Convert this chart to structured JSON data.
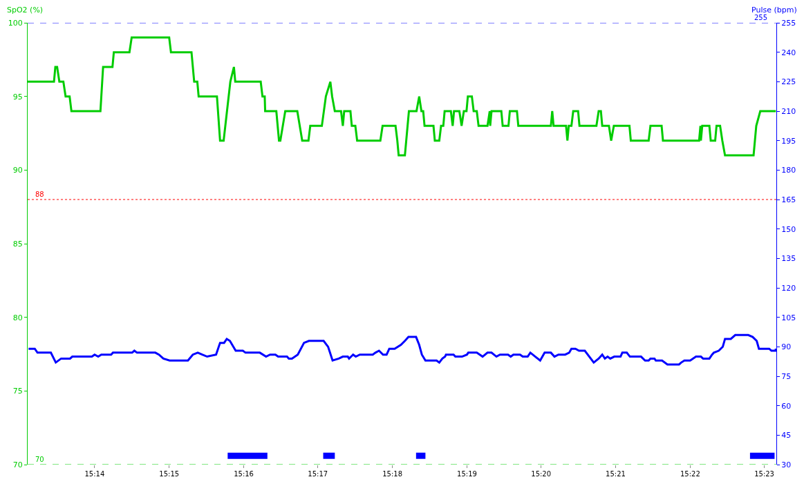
{
  "chart_data": {
    "type": "line",
    "ylabel": "SpO2 (%)",
    "y2label": "Pulse (bpm)",
    "xlim": [
      15.2183,
      15.386
    ],
    "xticks": [
      {
        "value": 15.2333,
        "label": "15:14"
      },
      {
        "value": 15.25,
        "label": "15:15"
      },
      {
        "value": 15.2667,
        "label": "15:16"
      },
      {
        "value": 15.2833,
        "label": "15:17"
      },
      {
        "value": 15.3,
        "label": "15:18"
      },
      {
        "value": 15.3167,
        "label": "15:19"
      },
      {
        "value": 15.3333,
        "label": "15:20"
      },
      {
        "value": 15.35,
        "label": "15:21"
      },
      {
        "value": 15.3667,
        "label": "15:22"
      },
      {
        "value": 15.3833,
        "label": "15:23"
      }
    ],
    "ylim": [
      70,
      100
    ],
    "yticks": [
      70,
      75,
      80,
      85,
      90,
      95,
      100
    ],
    "y2lim": [
      30,
      255
    ],
    "y2ticks": [
      30,
      45,
      60,
      75,
      90,
      105,
      120,
      135,
      150,
      165,
      180,
      195,
      210,
      225,
      240,
      255
    ],
    "marker": "none",
    "line_style": "solid",
    "ref_lines": [
      {
        "axis": "y",
        "value": 88,
        "label": "88",
        "color": "#ff0000",
        "line_style": "dotted"
      },
      {
        "axis": "y",
        "value": 70,
        "label": "70",
        "color": "#00cc00",
        "line_style": "dashed"
      },
      {
        "axis": "y2",
        "value": 255,
        "label": "255",
        "color": "#0000ff",
        "line_style": "dashed"
      }
    ],
    "series": [
      {
        "color": "#00cc00",
        "axis": "y",
        "x": [
          15.2183,
          15.2242,
          15.2245,
          15.2249,
          15.2254,
          15.2263,
          15.2268,
          15.2277,
          15.2281,
          15.2346,
          15.2352,
          15.2373,
          15.2376,
          15.2411,
          15.2416,
          15.25,
          15.2504,
          15.255,
          15.2556,
          15.2563,
          15.2566,
          15.2607,
          15.2614,
          15.2622,
          15.2637,
          15.2645,
          15.2648,
          15.2705,
          15.2709,
          15.2714,
          15.2715,
          15.274,
          15.2746,
          15.2749,
          15.276,
          15.2787,
          15.2798,
          15.2812,
          15.2816,
          15.2842,
          15.2851,
          15.2861,
          15.2865,
          15.2871,
          15.2885,
          15.2889,
          15.2892,
          15.2906,
          15.2909,
          15.2917,
          15.2921,
          15.2973,
          15.2978,
          15.3007,
          15.3011,
          15.3014,
          15.3028,
          15.3037,
          15.3054,
          15.306,
          15.3065,
          15.3069,
          15.3072,
          15.3092,
          15.3095,
          15.3105,
          15.3109,
          15.3114,
          15.3117,
          15.3131,
          15.3135,
          15.3138,
          15.315,
          15.3155,
          15.316,
          15.3166,
          15.3169,
          15.3178,
          15.3182,
          15.3189,
          15.3193,
          15.3213,
          15.3218,
          15.3219,
          15.3222,
          15.3244,
          15.3247,
          15.326,
          15.3263,
          15.3279,
          15.3282,
          15.3355,
          15.3358,
          15.3361,
          15.3389,
          15.3392,
          15.3395,
          15.3401,
          15.3405,
          15.3416,
          15.3419,
          15.3457,
          15.3462,
          15.3467,
          15.347,
          15.3485,
          15.349,
          15.3496,
          15.3531,
          15.3534,
          15.3574,
          15.3578,
          15.3603,
          15.3606,
          15.3687,
          15.369,
          15.3691,
          15.3694,
          15.371,
          15.3713,
          15.3723,
          15.3726,
          15.3734,
          15.3739,
          15.3745,
          15.3809,
          15.3812,
          15.3815,
          15.3824,
          15.3859
        ],
        "values": [
          96,
          96,
          97,
          97,
          96,
          96,
          95,
          95,
          94,
          94,
          97,
          97,
          98,
          98,
          99,
          99,
          98,
          98,
          96,
          96,
          95,
          95,
          92,
          92,
          96,
          97,
          96,
          96,
          95,
          95,
          94,
          94,
          92,
          92,
          94,
          94,
          92,
          92,
          93,
          93,
          95,
          96,
          95,
          94,
          94,
          93,
          94,
          94,
          93,
          93,
          92,
          92,
          93,
          93,
          92,
          91,
          91,
          94,
          94,
          95,
          94,
          94,
          93,
          93,
          92,
          92,
          93,
          93,
          94,
          94,
          93,
          94,
          94,
          93,
          94,
          94,
          95,
          95,
          94,
          94,
          93,
          93,
          94,
          93,
          94,
          94,
          93,
          93,
          94,
          94,
          93,
          93,
          94,
          93,
          93,
          92,
          93,
          93,
          94,
          94,
          93,
          93,
          94,
          94,
          93,
          93,
          92,
          93,
          93,
          92,
          92,
          93,
          93,
          92,
          92,
          93,
          92,
          93,
          93,
          92,
          92,
          93,
          93,
          92,
          91,
          91,
          92,
          93,
          94,
          94
        ]
      },
      {
        "color": "#0000ff",
        "axis": "y2",
        "x": [
          15.2185,
          15.2199,
          15.2205,
          15.2235,
          15.2246,
          15.2258,
          15.2278,
          15.2283,
          15.2327,
          15.2333,
          15.2341,
          15.2348,
          15.237,
          15.2374,
          15.2417,
          15.2422,
          15.2428,
          15.2469,
          15.2477,
          15.2487,
          15.2501,
          15.2542,
          15.2553,
          15.2564,
          15.2574,
          15.2585,
          15.2605,
          15.2614,
          15.2623,
          15.2629,
          15.2636,
          15.2649,
          15.2665,
          15.2671,
          15.2703,
          15.2717,
          15.2726,
          15.2738,
          15.2744,
          15.2764,
          15.2768,
          15.2775,
          15.2788,
          15.2802,
          15.2813,
          15.2846,
          15.2856,
          15.2866,
          15.288,
          15.2889,
          15.29,
          15.2903,
          15.2912,
          15.2918,
          15.2927,
          15.2956,
          15.2962,
          15.297,
          15.2979,
          15.2987,
          15.2993,
          15.3005,
          15.3019,
          15.3028,
          15.3036,
          15.3053,
          15.306,
          15.3066,
          15.3074,
          15.308,
          15.3099,
          15.3105,
          15.3112,
          15.3118,
          15.312,
          15.3137,
          15.3141,
          15.3156,
          15.3167,
          15.317,
          15.3189,
          15.3202,
          15.3213,
          15.3222,
          15.3233,
          15.3241,
          15.3259,
          15.3265,
          15.3271,
          15.3286,
          15.3292,
          15.3303,
          15.3309,
          15.332,
          15.3331,
          15.3341,
          15.3355,
          15.3363,
          15.3372,
          15.3387,
          15.3396,
          15.3401,
          15.341,
          15.3418,
          15.3431,
          15.3451,
          15.3462,
          15.347,
          15.3476,
          15.3482,
          15.3488,
          15.3497,
          15.3511,
          15.3515,
          15.3525,
          15.3532,
          15.3557,
          15.3566,
          15.3574,
          15.3578,
          15.3587,
          15.359,
          15.3604,
          15.3616,
          15.3642,
          15.3647,
          15.3654,
          15.3667,
          15.368,
          15.3691,
          15.3696,
          15.371,
          15.3716,
          15.372,
          15.3731,
          15.374,
          15.3745,
          15.3758,
          15.3768,
          15.3797,
          15.3807,
          15.3816,
          15.3821,
          15.3844,
          15.3849,
          15.3858,
          15.3859
        ],
        "values": [
          89,
          89,
          87,
          87,
          82,
          84,
          84,
          85,
          85,
          86,
          85,
          86,
          86,
          87,
          87,
          88,
          87,
          87,
          86,
          84,
          83,
          83,
          86,
          87,
          86,
          85,
          86,
          92,
          92,
          94,
          93,
          88,
          88,
          87,
          87,
          85,
          86,
          86,
          85,
          85,
          84,
          84,
          86,
          92,
          93,
          93,
          90,
          83,
          84,
          85,
          85,
          84,
          86,
          85,
          86,
          86,
          87,
          88,
          86,
          86,
          89,
          89,
          91,
          93,
          95,
          95,
          91,
          86,
          83,
          83,
          83,
          82,
          84,
          85,
          86,
          86,
          85,
          85,
          86,
          87,
          87,
          85,
          87,
          87,
          85,
          86,
          86,
          85,
          86,
          86,
          85,
          85,
          87,
          85,
          83,
          87,
          87,
          85,
          86,
          86,
          87,
          89,
          89,
          88,
          88,
          82,
          84,
          86,
          84,
          85,
          84,
          85,
          85,
          87,
          87,
          85,
          85,
          83,
          83,
          84,
          84,
          83,
          83,
          81,
          81,
          82,
          83,
          83,
          85,
          85,
          84,
          84,
          86,
          87,
          88,
          90,
          94,
          94,
          96,
          96,
          95,
          93,
          89,
          89,
          88,
          88,
          89
        ]
      },
      {
        "color": "#0000ff",
        "axis": "y",
        "x": [
          15.2631,
          15.272,
          15.278,
          15.2845,
          15.2871,
          15.296,
          15.3053,
          15.3074,
          15.34,
          15.3801,
          15.3856
        ],
        "values": [
          70.6,
          70.6,
          null,
          70.6,
          70.6,
          null,
          70.6,
          70.6,
          null,
          70.6,
          70.6
        ]
      }
    ]
  }
}
